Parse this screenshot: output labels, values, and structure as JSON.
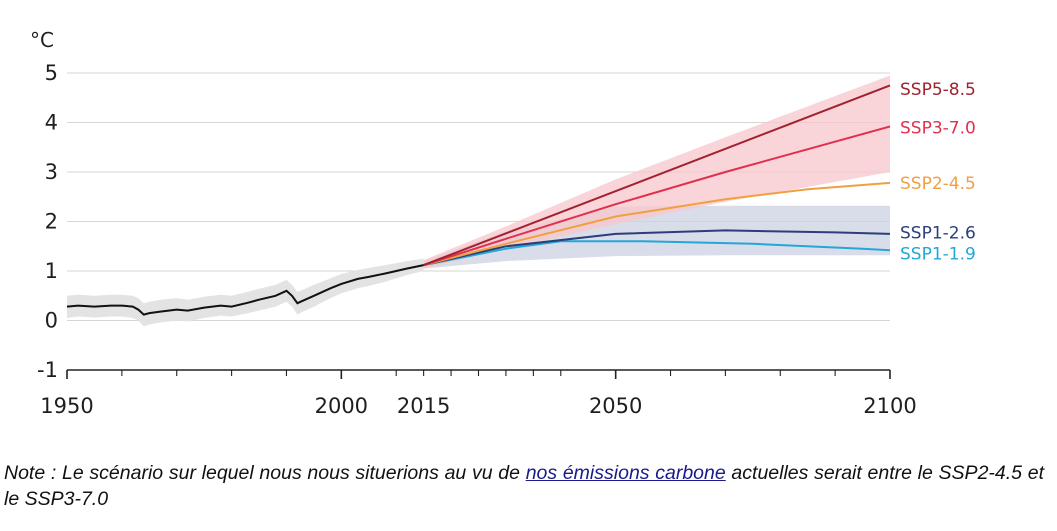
{
  "chart_data": {
    "type": "line",
    "unit_label": "°C",
    "xlim": [
      1950,
      2100
    ],
    "ylim": [
      -1,
      5
    ],
    "y_ticks": [
      "5",
      "4",
      "3",
      "2",
      "1",
      "0",
      "-1"
    ],
    "x_tick_labels": [
      "1950",
      "2000",
      "2015",
      "2050",
      "2100"
    ],
    "historical": {
      "x": [
        1950,
        1952,
        1955,
        1958,
        1960,
        1962,
        1963,
        1964,
        1965,
        1967,
        1970,
        1972,
        1975,
        1978,
        1980,
        1983,
        1985,
        1988,
        1990,
        1991,
        1992,
        1993,
        1995,
        1998,
        2000,
        2003,
        2005,
        2008,
        2010,
        2012,
        2015
      ],
      "y": [
        0.28,
        0.3,
        0.28,
        0.3,
        0.3,
        0.28,
        0.22,
        0.12,
        0.15,
        0.18,
        0.22,
        0.2,
        0.26,
        0.3,
        0.28,
        0.36,
        0.42,
        0.5,
        0.6,
        0.5,
        0.35,
        0.4,
        0.5,
        0.65,
        0.74,
        0.84,
        0.88,
        0.95,
        1.0,
        1.05,
        1.12
      ],
      "lower": [
        0.05,
        0.08,
        0.06,
        0.08,
        0.08,
        0.05,
        0.0,
        -0.12,
        -0.08,
        -0.04,
        0.0,
        -0.02,
        0.05,
        0.1,
        0.08,
        0.15,
        0.2,
        0.28,
        0.38,
        0.28,
        0.12,
        0.18,
        0.28,
        0.45,
        0.55,
        0.65,
        0.7,
        0.78,
        0.85,
        0.92,
        1.0
      ],
      "upper": [
        0.5,
        0.52,
        0.5,
        0.52,
        0.52,
        0.5,
        0.45,
        0.35,
        0.38,
        0.42,
        0.45,
        0.42,
        0.48,
        0.52,
        0.5,
        0.58,
        0.64,
        0.72,
        0.82,
        0.72,
        0.58,
        0.62,
        0.72,
        0.85,
        0.94,
        1.02,
        1.06,
        1.12,
        1.16,
        1.2,
        1.25
      ]
    },
    "series": [
      {
        "name": "SSP5-8.5",
        "color": "#a3212f",
        "x": [
          2015,
          2100
        ],
        "y": [
          1.12,
          4.75
        ]
      },
      {
        "name": "SSP3-7.0",
        "color": "#e0304e",
        "x": [
          2015,
          2030,
          2050,
          2070,
          2100
        ],
        "y": [
          1.12,
          1.65,
          2.35,
          3.0,
          3.92
        ]
      },
      {
        "name": "SSP2-4.5",
        "color": "#f0a040",
        "x": [
          2015,
          2030,
          2050,
          2070,
          2085,
          2100
        ],
        "y": [
          1.12,
          1.55,
          2.1,
          2.45,
          2.65,
          2.78
        ]
      },
      {
        "name": "SSP1-2.6",
        "color": "#2a3f7a",
        "x": [
          2015,
          2030,
          2050,
          2070,
          2090,
          2100
        ],
        "y": [
          1.12,
          1.5,
          1.75,
          1.82,
          1.78,
          1.75
        ]
      },
      {
        "name": "SSP1-1.9",
        "color": "#22a8d8",
        "x": [
          2015,
          2030,
          2040,
          2055,
          2075,
          2095,
          2100
        ],
        "y": [
          1.12,
          1.45,
          1.6,
          1.6,
          1.55,
          1.45,
          1.42
        ]
      }
    ],
    "bands": [
      {
        "name": "SSP1-2.6 range",
        "color": "#ccd1e3",
        "x": [
          2015,
          2030,
          2050,
          2070,
          2100
        ],
        "lower": [
          1.05,
          1.2,
          1.3,
          1.32,
          1.32
        ],
        "upper": [
          1.2,
          1.8,
          2.3,
          2.32,
          2.32
        ]
      },
      {
        "name": "SSP3-7.0 range",
        "color": "#f7c6cb",
        "x": [
          2015,
          2030,
          2050,
          2070,
          2100
        ],
        "lower": [
          1.05,
          1.45,
          1.95,
          2.4,
          3.0
        ],
        "upper": [
          1.22,
          1.9,
          2.85,
          3.7,
          4.95
        ]
      }
    ]
  },
  "note": {
    "before_link": "Note : Le scénario sur lequel nous nous situerions au vu de ",
    "link_text": "nos émissions carbone",
    "after_link": " actuelles serait entre le SSP2-4.5 et le SSP3-7.0"
  }
}
